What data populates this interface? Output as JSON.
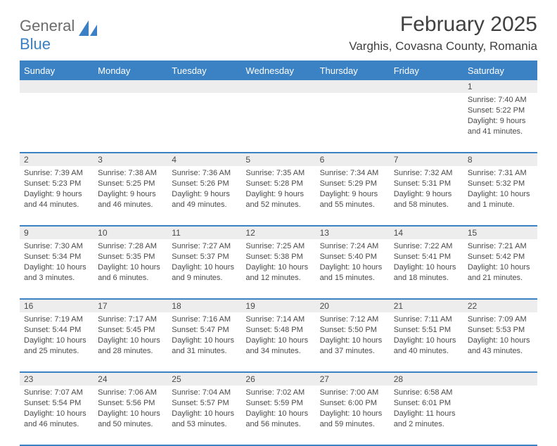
{
  "logo": {
    "part1": "General",
    "part2": "Blue"
  },
  "title": "February 2025",
  "location": "Varghis, Covasna County, Romania",
  "colors": {
    "header_bg": "#3b82c4",
    "header_text": "#ffffff",
    "grid_border": "#3b82c4",
    "daynum_bg": "#ededed",
    "text": "#4a4a4a",
    "logo_gray": "#6b6b6b",
    "logo_blue": "#3b7fc4"
  },
  "day_names": [
    "Sunday",
    "Monday",
    "Tuesday",
    "Wednesday",
    "Thursday",
    "Friday",
    "Saturday"
  ],
  "weeks": [
    {
      "nums": [
        "",
        "",
        "",
        "",
        "",
        "",
        "1"
      ],
      "cells": [
        null,
        null,
        null,
        null,
        null,
        null,
        {
          "sunrise": "Sunrise: 7:40 AM",
          "sunset": "Sunset: 5:22 PM",
          "daylight1": "Daylight: 9 hours",
          "daylight2": "and 41 minutes."
        }
      ]
    },
    {
      "nums": [
        "2",
        "3",
        "4",
        "5",
        "6",
        "7",
        "8"
      ],
      "cells": [
        {
          "sunrise": "Sunrise: 7:39 AM",
          "sunset": "Sunset: 5:23 PM",
          "daylight1": "Daylight: 9 hours",
          "daylight2": "and 44 minutes."
        },
        {
          "sunrise": "Sunrise: 7:38 AM",
          "sunset": "Sunset: 5:25 PM",
          "daylight1": "Daylight: 9 hours",
          "daylight2": "and 46 minutes."
        },
        {
          "sunrise": "Sunrise: 7:36 AM",
          "sunset": "Sunset: 5:26 PM",
          "daylight1": "Daylight: 9 hours",
          "daylight2": "and 49 minutes."
        },
        {
          "sunrise": "Sunrise: 7:35 AM",
          "sunset": "Sunset: 5:28 PM",
          "daylight1": "Daylight: 9 hours",
          "daylight2": "and 52 minutes."
        },
        {
          "sunrise": "Sunrise: 7:34 AM",
          "sunset": "Sunset: 5:29 PM",
          "daylight1": "Daylight: 9 hours",
          "daylight2": "and 55 minutes."
        },
        {
          "sunrise": "Sunrise: 7:32 AM",
          "sunset": "Sunset: 5:31 PM",
          "daylight1": "Daylight: 9 hours",
          "daylight2": "and 58 minutes."
        },
        {
          "sunrise": "Sunrise: 7:31 AM",
          "sunset": "Sunset: 5:32 PM",
          "daylight1": "Daylight: 10 hours",
          "daylight2": "and 1 minute."
        }
      ]
    },
    {
      "nums": [
        "9",
        "10",
        "11",
        "12",
        "13",
        "14",
        "15"
      ],
      "cells": [
        {
          "sunrise": "Sunrise: 7:30 AM",
          "sunset": "Sunset: 5:34 PM",
          "daylight1": "Daylight: 10 hours",
          "daylight2": "and 3 minutes."
        },
        {
          "sunrise": "Sunrise: 7:28 AM",
          "sunset": "Sunset: 5:35 PM",
          "daylight1": "Daylight: 10 hours",
          "daylight2": "and 6 minutes."
        },
        {
          "sunrise": "Sunrise: 7:27 AM",
          "sunset": "Sunset: 5:37 PM",
          "daylight1": "Daylight: 10 hours",
          "daylight2": "and 9 minutes."
        },
        {
          "sunrise": "Sunrise: 7:25 AM",
          "sunset": "Sunset: 5:38 PM",
          "daylight1": "Daylight: 10 hours",
          "daylight2": "and 12 minutes."
        },
        {
          "sunrise": "Sunrise: 7:24 AM",
          "sunset": "Sunset: 5:40 PM",
          "daylight1": "Daylight: 10 hours",
          "daylight2": "and 15 minutes."
        },
        {
          "sunrise": "Sunrise: 7:22 AM",
          "sunset": "Sunset: 5:41 PM",
          "daylight1": "Daylight: 10 hours",
          "daylight2": "and 18 minutes."
        },
        {
          "sunrise": "Sunrise: 7:21 AM",
          "sunset": "Sunset: 5:42 PM",
          "daylight1": "Daylight: 10 hours",
          "daylight2": "and 21 minutes."
        }
      ]
    },
    {
      "nums": [
        "16",
        "17",
        "18",
        "19",
        "20",
        "21",
        "22"
      ],
      "cells": [
        {
          "sunrise": "Sunrise: 7:19 AM",
          "sunset": "Sunset: 5:44 PM",
          "daylight1": "Daylight: 10 hours",
          "daylight2": "and 25 minutes."
        },
        {
          "sunrise": "Sunrise: 7:17 AM",
          "sunset": "Sunset: 5:45 PM",
          "daylight1": "Daylight: 10 hours",
          "daylight2": "and 28 minutes."
        },
        {
          "sunrise": "Sunrise: 7:16 AM",
          "sunset": "Sunset: 5:47 PM",
          "daylight1": "Daylight: 10 hours",
          "daylight2": "and 31 minutes."
        },
        {
          "sunrise": "Sunrise: 7:14 AM",
          "sunset": "Sunset: 5:48 PM",
          "daylight1": "Daylight: 10 hours",
          "daylight2": "and 34 minutes."
        },
        {
          "sunrise": "Sunrise: 7:12 AM",
          "sunset": "Sunset: 5:50 PM",
          "daylight1": "Daylight: 10 hours",
          "daylight2": "and 37 minutes."
        },
        {
          "sunrise": "Sunrise: 7:11 AM",
          "sunset": "Sunset: 5:51 PM",
          "daylight1": "Daylight: 10 hours",
          "daylight2": "and 40 minutes."
        },
        {
          "sunrise": "Sunrise: 7:09 AM",
          "sunset": "Sunset: 5:53 PM",
          "daylight1": "Daylight: 10 hours",
          "daylight2": "and 43 minutes."
        }
      ]
    },
    {
      "nums": [
        "23",
        "24",
        "25",
        "26",
        "27",
        "28",
        ""
      ],
      "cells": [
        {
          "sunrise": "Sunrise: 7:07 AM",
          "sunset": "Sunset: 5:54 PM",
          "daylight1": "Daylight: 10 hours",
          "daylight2": "and 46 minutes."
        },
        {
          "sunrise": "Sunrise: 7:06 AM",
          "sunset": "Sunset: 5:56 PM",
          "daylight1": "Daylight: 10 hours",
          "daylight2": "and 50 minutes."
        },
        {
          "sunrise": "Sunrise: 7:04 AM",
          "sunset": "Sunset: 5:57 PM",
          "daylight1": "Daylight: 10 hours",
          "daylight2": "and 53 minutes."
        },
        {
          "sunrise": "Sunrise: 7:02 AM",
          "sunset": "Sunset: 5:59 PM",
          "daylight1": "Daylight: 10 hours",
          "daylight2": "and 56 minutes."
        },
        {
          "sunrise": "Sunrise: 7:00 AM",
          "sunset": "Sunset: 6:00 PM",
          "daylight1": "Daylight: 10 hours",
          "daylight2": "and 59 minutes."
        },
        {
          "sunrise": "Sunrise: 6:58 AM",
          "sunset": "Sunset: 6:01 PM",
          "daylight1": "Daylight: 11 hours",
          "daylight2": "and 2 minutes."
        },
        null
      ]
    }
  ]
}
